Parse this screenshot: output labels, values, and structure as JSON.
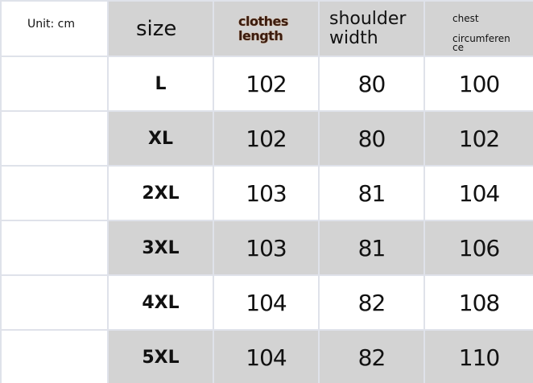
{
  "unit_label": "Unit: cm",
  "headers": {
    "size": "size",
    "clothes_length": "clothes length",
    "shoulder_width": "shoulder width",
    "chest_circumference_1": "chest",
    "chest_circumference_2": "circumferen",
    "chest_circumference_3": "ce"
  },
  "rows": [
    {
      "size": "L",
      "clothes_length": "102",
      "shoulder_width": "80",
      "chest": "100"
    },
    {
      "size": "XL",
      "clothes_length": "102",
      "shoulder_width": "80",
      "chest": "102"
    },
    {
      "size": "2XL",
      "clothes_length": "103",
      "shoulder_width": "81",
      "chest": "104"
    },
    {
      "size": "3XL",
      "clothes_length": "103",
      "shoulder_width": "81",
      "chest": "106"
    },
    {
      "size": "4XL",
      "clothes_length": "104",
      "shoulder_width": "82",
      "chest": "108"
    },
    {
      "size": "5XL",
      "clothes_length": "104",
      "shoulder_width": "82",
      "chest": "110"
    }
  ],
  "colors": {
    "shaded_row": "#d3d3d3",
    "border": "#dfe2ea",
    "clothes_length_header": "#3a1c10"
  }
}
